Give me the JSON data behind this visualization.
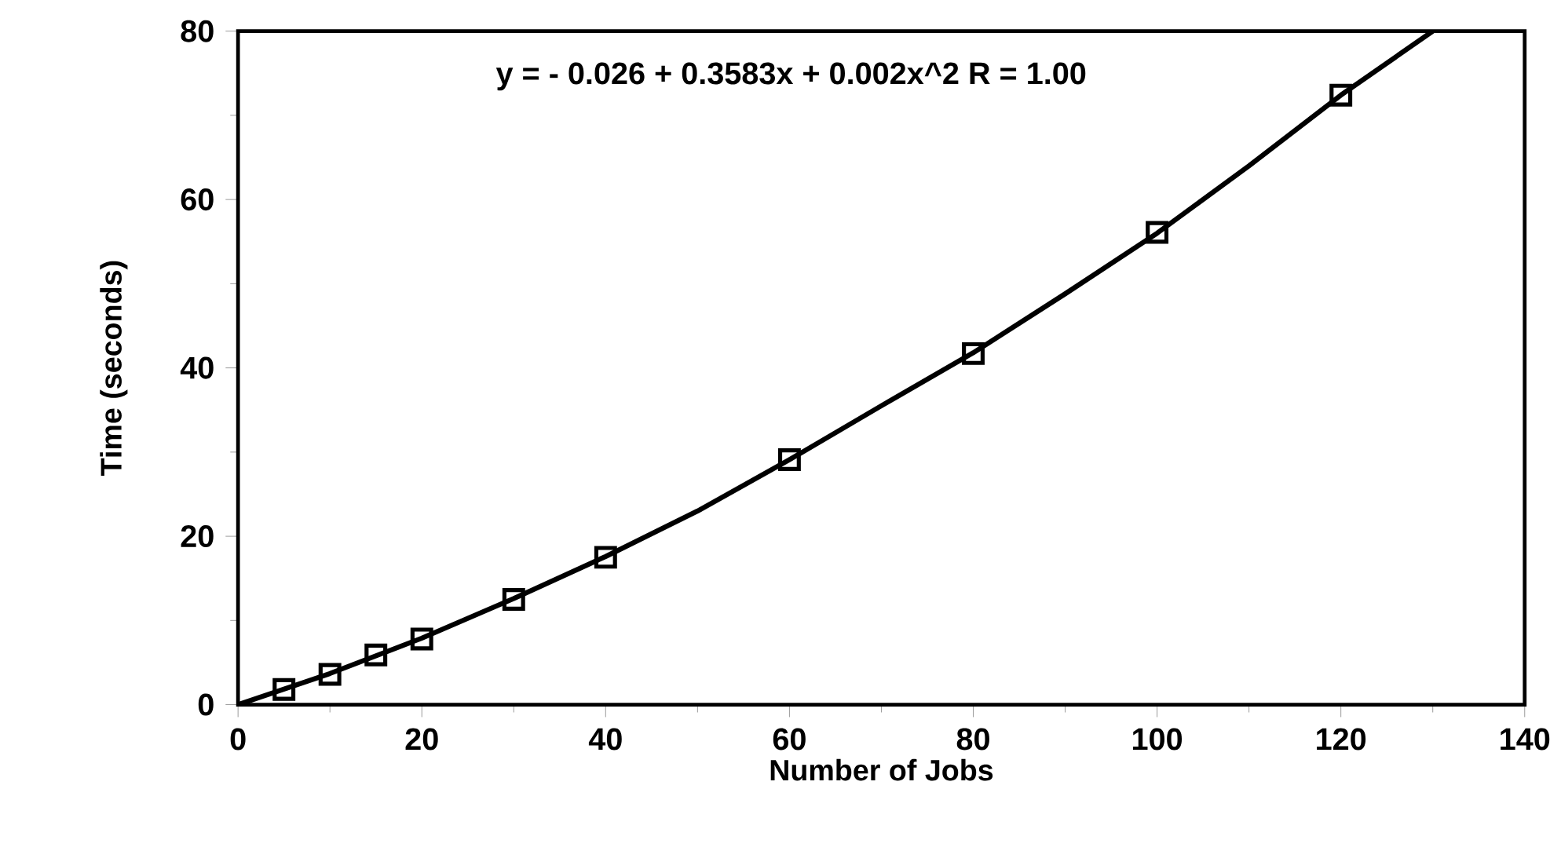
{
  "chart_data": {
    "type": "scatter",
    "xlabel": "Number of Jobs",
    "ylabel": "Time (seconds)",
    "annotations": [
      "y =  - 0.026 + 0.3583x + 0.002x^2   R = 1.00"
    ],
    "xlim": [
      0,
      140
    ],
    "ylim": [
      0,
      80
    ],
    "xticks": [
      0,
      20,
      40,
      60,
      80,
      100,
      120,
      140
    ],
    "yticks": [
      0,
      20,
      40,
      60,
      80
    ],
    "series": [
      {
        "type": "scatter",
        "color": "#000000",
        "marker": "square",
        "x": [
          5,
          10,
          15,
          20,
          30,
          40,
          60,
          80,
          100,
          120
        ],
        "values": [
          1.8,
          3.6,
          5.9,
          7.8,
          12.5,
          17.5,
          29.1,
          41.7,
          56.1,
          72.4
        ]
      },
      {
        "type": "line",
        "color": "#000000",
        "x": [
          0,
          10,
          20,
          30,
          40,
          50,
          60,
          70,
          80,
          90,
          100,
          110,
          120,
          130
        ],
        "values": [
          0,
          3.7,
          7.9,
          12.6,
          17.6,
          23,
          29.1,
          35.5,
          41.8,
          48.8,
          56,
          64,
          72.4,
          80
        ]
      }
    ]
  }
}
